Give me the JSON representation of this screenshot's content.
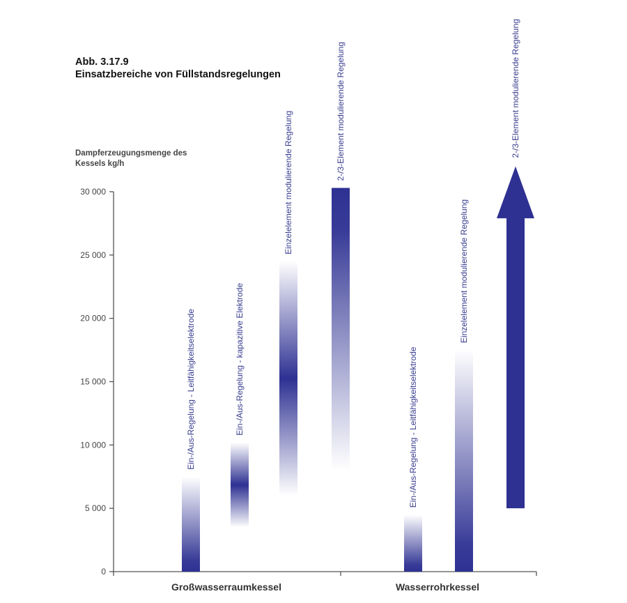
{
  "figure": {
    "number": "Abb. 3.17.9",
    "title": "Einsatzbereiche von Füllstandsregelungen"
  },
  "chart_data": {
    "type": "bar",
    "title": "Einsatzbereiche von Füllstandsregelungen",
    "ylabel_line1": "Dampferzeugungsmenge des",
    "ylabel_line2": "Kessels kg/h",
    "ylim": [
      0,
      30000
    ],
    "yticks": [
      0,
      5000,
      10000,
      15000,
      20000,
      25000,
      30000
    ],
    "ytick_labels": [
      "0",
      "5 000",
      "10 000",
      "15 000",
      "20 000",
      "25 000",
      "30 000"
    ],
    "grid": false,
    "categories": [
      "Großwasserraumkessel",
      "Wasserrohrkessel"
    ],
    "ranges": [
      {
        "group": 0,
        "label": "Ein-/Aus-Regelung - Leitfähigkeitselektrode",
        "low": 0,
        "high": 7500,
        "fade": "up"
      },
      {
        "group": 0,
        "label": "Ein-/Aus-Regelung - kapazitive Elektrode",
        "low": 3500,
        "high": 10200,
        "fade": "both"
      },
      {
        "group": 0,
        "label": "Einzelelement modulierende Regelung",
        "low": 6000,
        "high": 24500,
        "fade": "both"
      },
      {
        "group": 0,
        "label": "2-/3-Element modulierende Regelung",
        "low": 8000,
        "high": 30300,
        "fade": "down"
      },
      {
        "group": 1,
        "label": "Ein-/Aus-Regelung - Leitfähigkeitselektrode",
        "low": 0,
        "high": 4500,
        "fade": "up"
      },
      {
        "group": 1,
        "label": "Einzelelement modulierende Regelung",
        "low": 0,
        "high": 17500,
        "fade": "up"
      },
      {
        "group": 1,
        "label": "2-/3-Element modulierende Regelung",
        "low": 5000,
        "high": 32000,
        "fade": "arrow"
      }
    ],
    "colors": {
      "bar": "#2e3192",
      "axis": "#555555"
    }
  }
}
